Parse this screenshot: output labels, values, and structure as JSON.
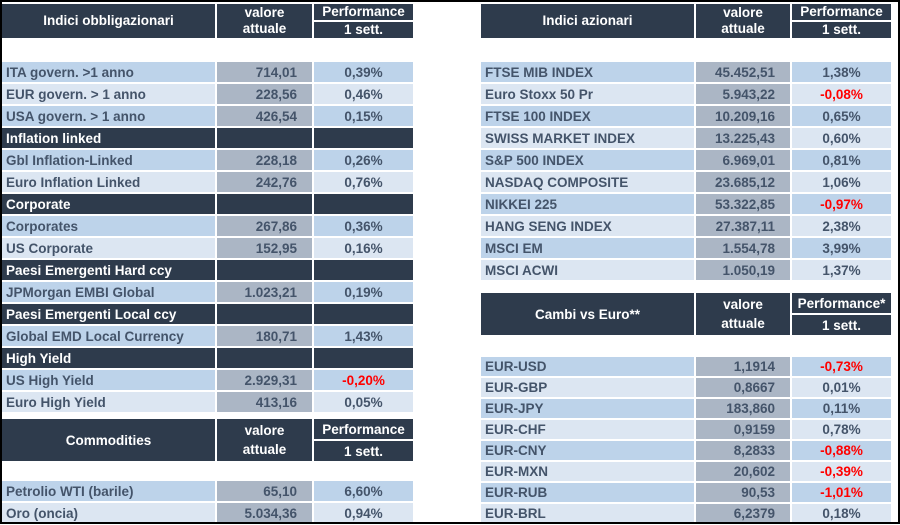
{
  "colors": {
    "header_bg": "#2e3b4c",
    "row_blue_dark": "#bdd3ea",
    "row_blue_light": "#dce6f2",
    "value_cell_gray": "#abb6c5",
    "text": "#44546a",
    "negative": "#ff0000"
  },
  "tables": [
    {
      "id": "bonds",
      "title": "Indici obbligazionari",
      "value_header_line1": "valore",
      "value_header_line2": "attuale",
      "perf_header_line1": "Performance",
      "perf_header_line2": "1 sett.",
      "rows": [
        {
          "label": "ITA govern. >1 anno",
          "value": "714,01",
          "perf": "0,39%",
          "negative": false,
          "alt": false
        },
        {
          "label": "EUR govern. > 1 anno",
          "value": "228,56",
          "perf": "0,46%",
          "negative": false,
          "alt": true
        },
        {
          "label": "USA govern. > 1 anno",
          "value": "426,54",
          "perf": "0,15%",
          "negative": false,
          "alt": false
        },
        {
          "section": true,
          "label": "Inflation linked"
        },
        {
          "label": "Gbl Inflation-Linked",
          "value": "228,18",
          "perf": "0,26%",
          "negative": false,
          "alt": false
        },
        {
          "label": "Euro Inflation Linked",
          "value": "242,76",
          "perf": "0,76%",
          "negative": false,
          "alt": true
        },
        {
          "section": true,
          "label": "Corporate"
        },
        {
          "label": "Corporates",
          "value": "267,86",
          "perf": "0,36%",
          "negative": false,
          "alt": false
        },
        {
          "label": "US Corporate",
          "value": "152,95",
          "perf": "0,16%",
          "negative": false,
          "alt": true
        },
        {
          "section": true,
          "label": "Paesi Emergenti Hard ccy"
        },
        {
          "label": "JPMorgan EMBI   Global",
          "value": "1.023,21",
          "perf": "0,19%",
          "negative": false,
          "alt": false
        },
        {
          "section": true,
          "label": "Paesi Emergenti Local ccy"
        },
        {
          "label": "Global EMD Local Currency",
          "value": "180,71",
          "perf": "1,43%",
          "negative": false,
          "alt": false
        },
        {
          "section": true,
          "label": "High Yield"
        },
        {
          "label": "US High Yield",
          "value": "2.929,31",
          "perf": "-0,20%",
          "negative": true,
          "alt": false
        },
        {
          "label": "Euro High Yield",
          "value": "413,16",
          "perf": "0,05%",
          "negative": false,
          "alt": true
        }
      ]
    },
    {
      "id": "commodities",
      "title": "Commodities",
      "value_header_line1": "valore",
      "value_header_line2": "attuale",
      "perf_header_line1": "Performance",
      "perf_header_line2": "1 sett.",
      "rows": [
        {
          "label": "Petrolio WTI (barile)",
          "value": "65,10",
          "perf": "6,60%",
          "negative": false,
          "alt": false
        },
        {
          "label": "Oro (oncia)",
          "value": "5.034,36",
          "perf": "0,94%",
          "negative": false,
          "alt": true
        }
      ]
    },
    {
      "id": "equities",
      "title": "Indici azionari",
      "value_header_line1": "valore",
      "value_header_line2": "attuale",
      "perf_header_line1": "Performance",
      "perf_header_line2": "1 sett.",
      "rows": [
        {
          "label": "FTSE MIB INDEX",
          "value": "45.452,51",
          "perf": "1,38%",
          "negative": false,
          "alt": false
        },
        {
          "label": "Euro Stoxx 50 Pr",
          "value": "5.943,22",
          "perf": "-0,08%",
          "negative": true,
          "alt": true
        },
        {
          "label": "FTSE 100 INDEX",
          "value": "10.209,16",
          "perf": "0,65%",
          "negative": false,
          "alt": false
        },
        {
          "label": "SWISS MARKET INDEX",
          "value": "13.225,43",
          "perf": "0,60%",
          "negative": false,
          "alt": true
        },
        {
          "label": "S&P 500 INDEX",
          "value": "6.969,01",
          "perf": "0,81%",
          "negative": false,
          "alt": false
        },
        {
          "label": "NASDAQ COMPOSITE",
          "value": "23.685,12",
          "perf": "1,06%",
          "negative": false,
          "alt": true
        },
        {
          "label": "NIKKEI 225",
          "value": "53.322,85",
          "perf": "-0,97%",
          "negative": true,
          "alt": false
        },
        {
          "label": "HANG SENG INDEX",
          "value": "27.387,11",
          "perf": "2,38%",
          "negative": false,
          "alt": true
        },
        {
          "label": "MSCI EM",
          "value": "1.554,78",
          "perf": "3,99%",
          "negative": false,
          "alt": false
        },
        {
          "label": "MSCI ACWI",
          "value": "1.050,19",
          "perf": "1,37%",
          "negative": false,
          "alt": true
        }
      ]
    },
    {
      "id": "fx",
      "title": "Cambi vs Euro**",
      "value_header_line1": "valore",
      "value_header_line2": "attuale",
      "perf_header_line1": "Performance*",
      "perf_header_line2": "1 sett.",
      "rows": [
        {
          "label": "EUR-USD",
          "value": "1,1914",
          "perf": "-0,73%",
          "negative": true,
          "alt": false
        },
        {
          "label": "EUR-GBP",
          "value": "0,8667",
          "perf": "0,01%",
          "negative": false,
          "alt": true
        },
        {
          "label": "EUR-JPY",
          "value": "183,860",
          "perf": "0,11%",
          "negative": false,
          "alt": false
        },
        {
          "label": "EUR-CHF",
          "value": "0,9159",
          "perf": "0,78%",
          "negative": false,
          "alt": true
        },
        {
          "label": "EUR-CNY",
          "value": "8,2833",
          "perf": "-0,88%",
          "negative": true,
          "alt": false
        },
        {
          "label": "EUR-MXN",
          "value": "20,602",
          "perf": "-0,39%",
          "negative": true,
          "alt": true
        },
        {
          "label": "EUR-RUB",
          "value": "90,53",
          "perf": "-1,01%",
          "negative": true,
          "alt": false
        },
        {
          "label": "EUR-BRL",
          "value": "6,2379",
          "perf": "0,18%",
          "negative": false,
          "alt": true
        }
      ]
    }
  ]
}
